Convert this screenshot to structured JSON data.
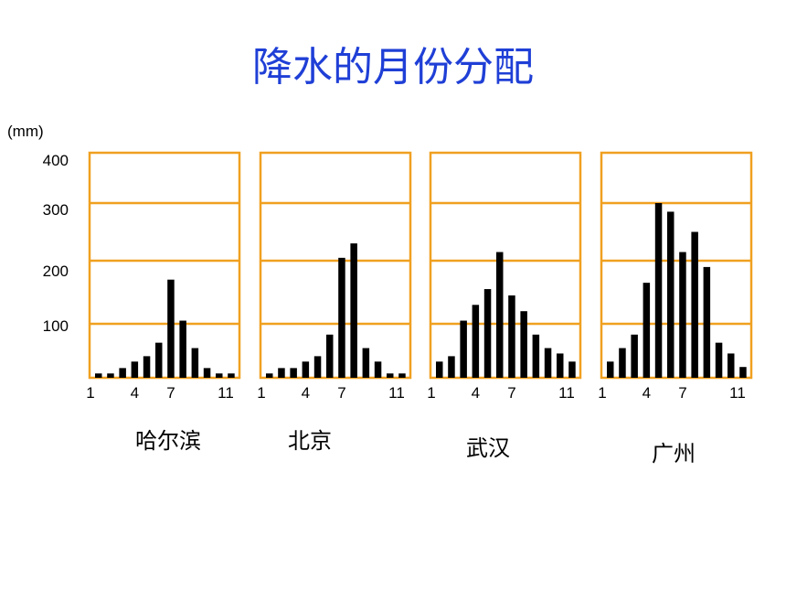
{
  "title": "降水的月份分配",
  "title_color": "#1f3fd6",
  "frame_color": "#f0a020",
  "bar_color": "#000000",
  "chart_data": [
    {
      "type": "bar",
      "name": "哈尔滨",
      "categories": [
        "1",
        "2",
        "3",
        "4",
        "5",
        "6",
        "7",
        "8",
        "9",
        "10",
        "11",
        "12"
      ],
      "values": [
        8,
        8,
        18,
        30,
        40,
        65,
        170,
        105,
        55,
        18,
        8,
        8
      ],
      "ylabel": "(mm)",
      "yticks": [
        "100",
        "200",
        "300",
        "400"
      ],
      "xticks": [
        "1",
        "4",
        "7",
        "11"
      ],
      "ylim": [
        0,
        400
      ]
    },
    {
      "type": "bar",
      "name": "北京",
      "categories": [
        "1",
        "2",
        "3",
        "4",
        "5",
        "6",
        "7",
        "8",
        "9",
        "10",
        "11",
        "12"
      ],
      "values": [
        8,
        18,
        18,
        30,
        40,
        80,
        205,
        230,
        55,
        30,
        8,
        8
      ],
      "xticks": [
        "1",
        "4",
        "7",
        "11"
      ],
      "ylim": [
        0,
        400
      ]
    },
    {
      "type": "bar",
      "name": "武汉",
      "categories": [
        "1",
        "2",
        "3",
        "4",
        "5",
        "6",
        "7",
        "8",
        "9",
        "10",
        "11",
        "12"
      ],
      "values": [
        30,
        40,
        105,
        130,
        155,
        215,
        145,
        120,
        80,
        55,
        45,
        30
      ],
      "xticks": [
        "1",
        "4",
        "7",
        "11"
      ],
      "ylim": [
        0,
        400
      ]
    },
    {
      "type": "bar",
      "name": "广州",
      "categories": [
        "1",
        "2",
        "3",
        "4",
        "5",
        "6",
        "7",
        "8",
        "9",
        "10",
        "11",
        "12"
      ],
      "values": [
        30,
        55,
        80,
        165,
        300,
        285,
        215,
        250,
        190,
        65,
        45,
        20
      ],
      "xticks": [
        "1",
        "4",
        "7",
        "11"
      ],
      "ylim": [
        0,
        400
      ]
    }
  ]
}
